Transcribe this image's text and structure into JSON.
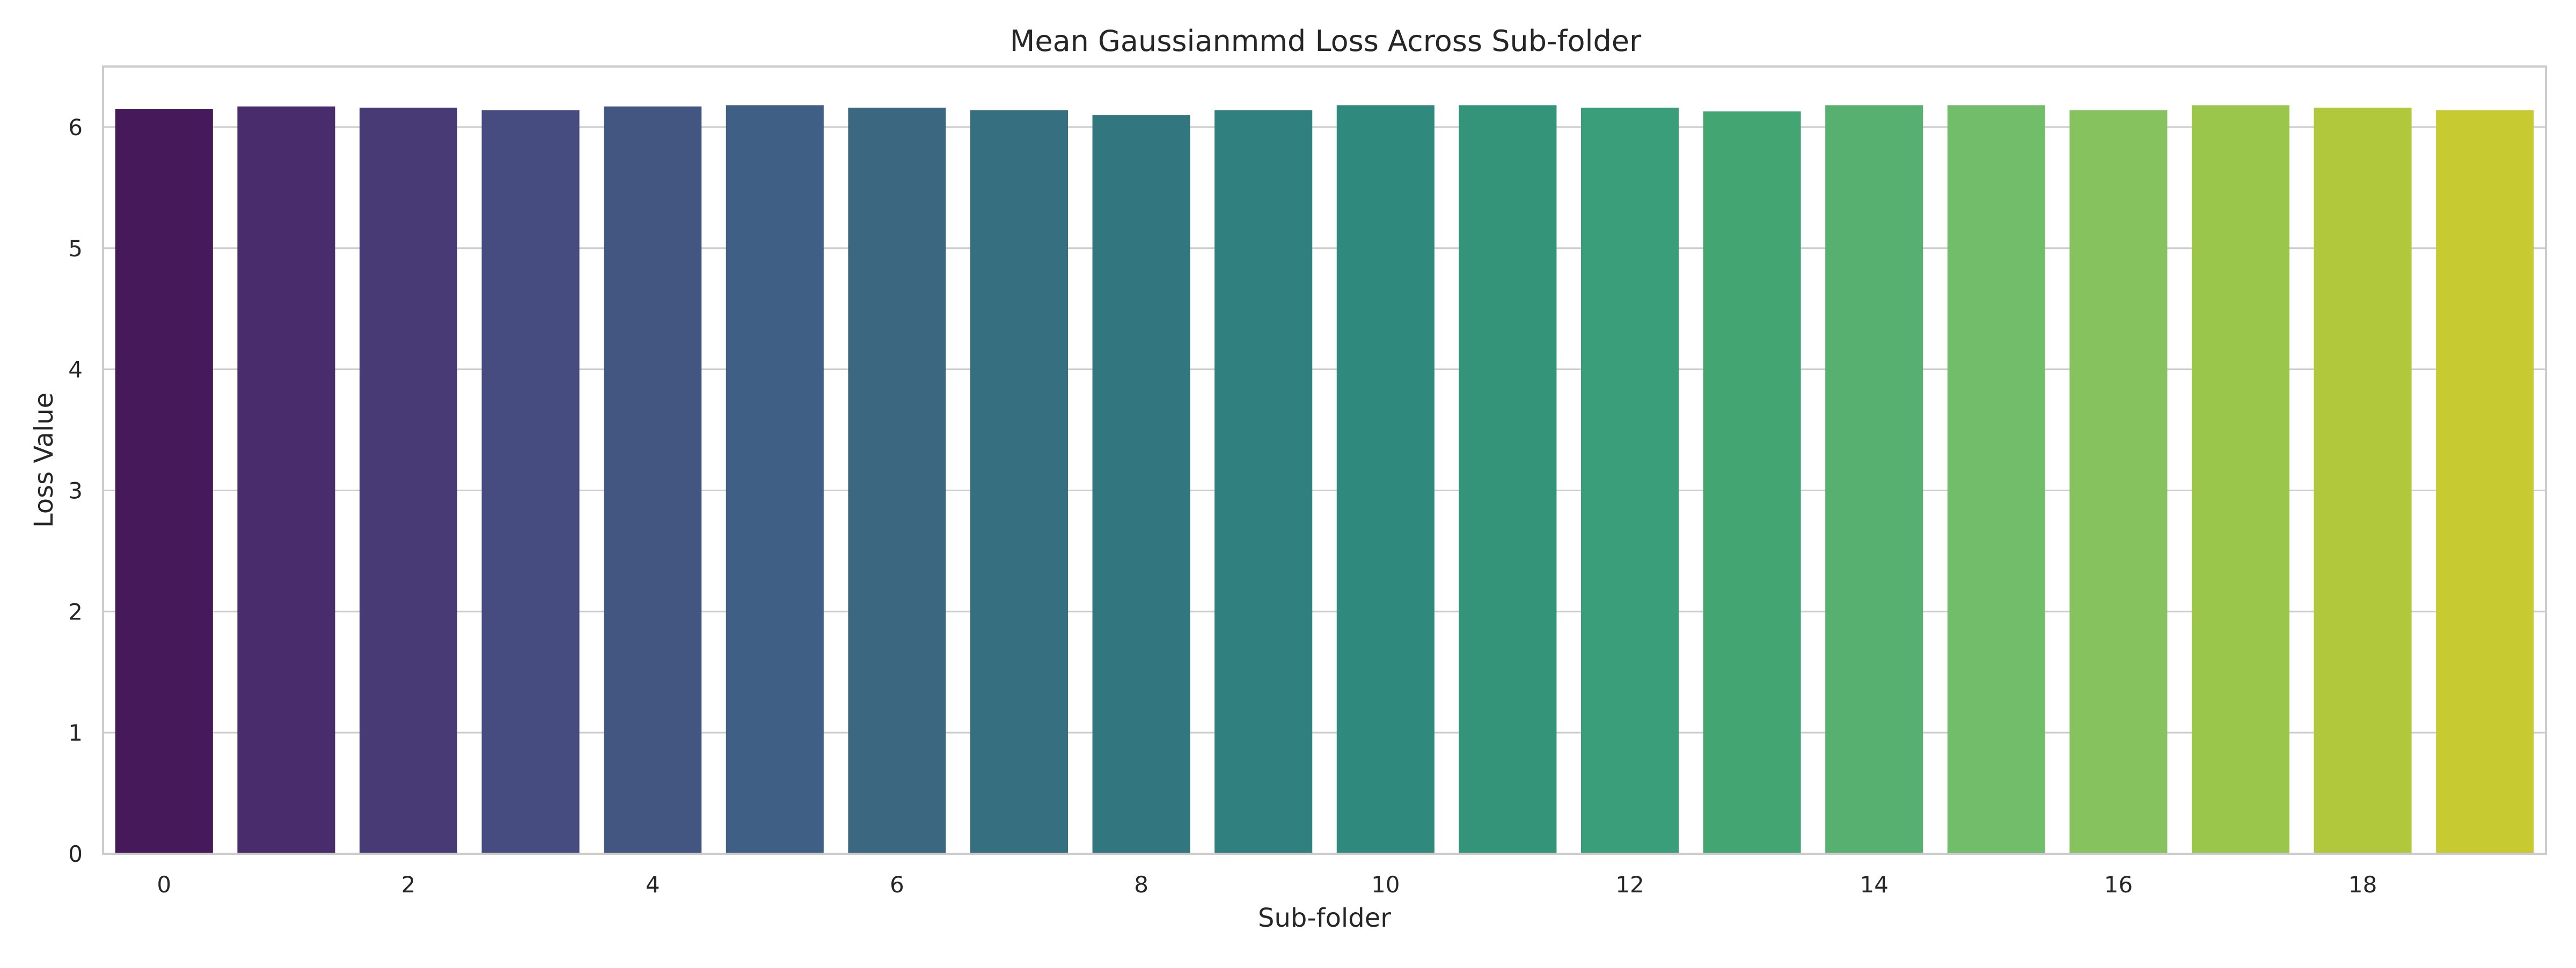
{
  "chart_data": {
    "type": "bar",
    "title": "Mean Gaussianmmd Loss Across Sub-folder",
    "xlabel": "Sub-folder",
    "ylabel": "Loss Value",
    "categories": [
      "0",
      "1",
      "2",
      "3",
      "4",
      "5",
      "6",
      "7",
      "8",
      "9",
      "10",
      "11",
      "12",
      "13",
      "14",
      "15",
      "16",
      "17",
      "18",
      "19"
    ],
    "x_tick_labels": [
      "0",
      "2",
      "4",
      "6",
      "8",
      "10",
      "12",
      "14",
      "16",
      "18"
    ],
    "y_ticks": [
      0,
      1,
      2,
      3,
      4,
      5,
      6
    ],
    "values": [
      6.15,
      6.17,
      6.16,
      6.14,
      6.17,
      6.18,
      6.16,
      6.14,
      6.1,
      6.14,
      6.18,
      6.18,
      6.16,
      6.13,
      6.18,
      6.18,
      6.14,
      6.18,
      6.16,
      6.14
    ],
    "ylim": [
      0,
      6.5
    ],
    "grid": "horizontal",
    "colors": [
      "#440154",
      "#481467",
      "#482576",
      "#453781",
      "#3f4788",
      "#39558c",
      "#32648e",
      "#2d718e",
      "#287d8e",
      "#238a8d",
      "#1f968b",
      "#20a386",
      "#29af7f",
      "#3dbc74",
      "#56c667",
      "#75d054",
      "#95d840",
      "#bade28",
      "#dde318",
      "#fde725"
    ],
    "bar_colors_rendered": [
      "#45195a",
      "#482c6b",
      "#473a75",
      "#464b80",
      "#435682",
      "#3f5f84",
      "#3c6780",
      "#367080",
      "#327780",
      "#2f807e",
      "#2f897d",
      "#339479",
      "#3a9e7a",
      "#43a672",
      "#57b06f",
      "#72bd69",
      "#86c25d",
      "#9bc64c",
      "#b1c83c",
      "#c8ca32"
    ]
  }
}
